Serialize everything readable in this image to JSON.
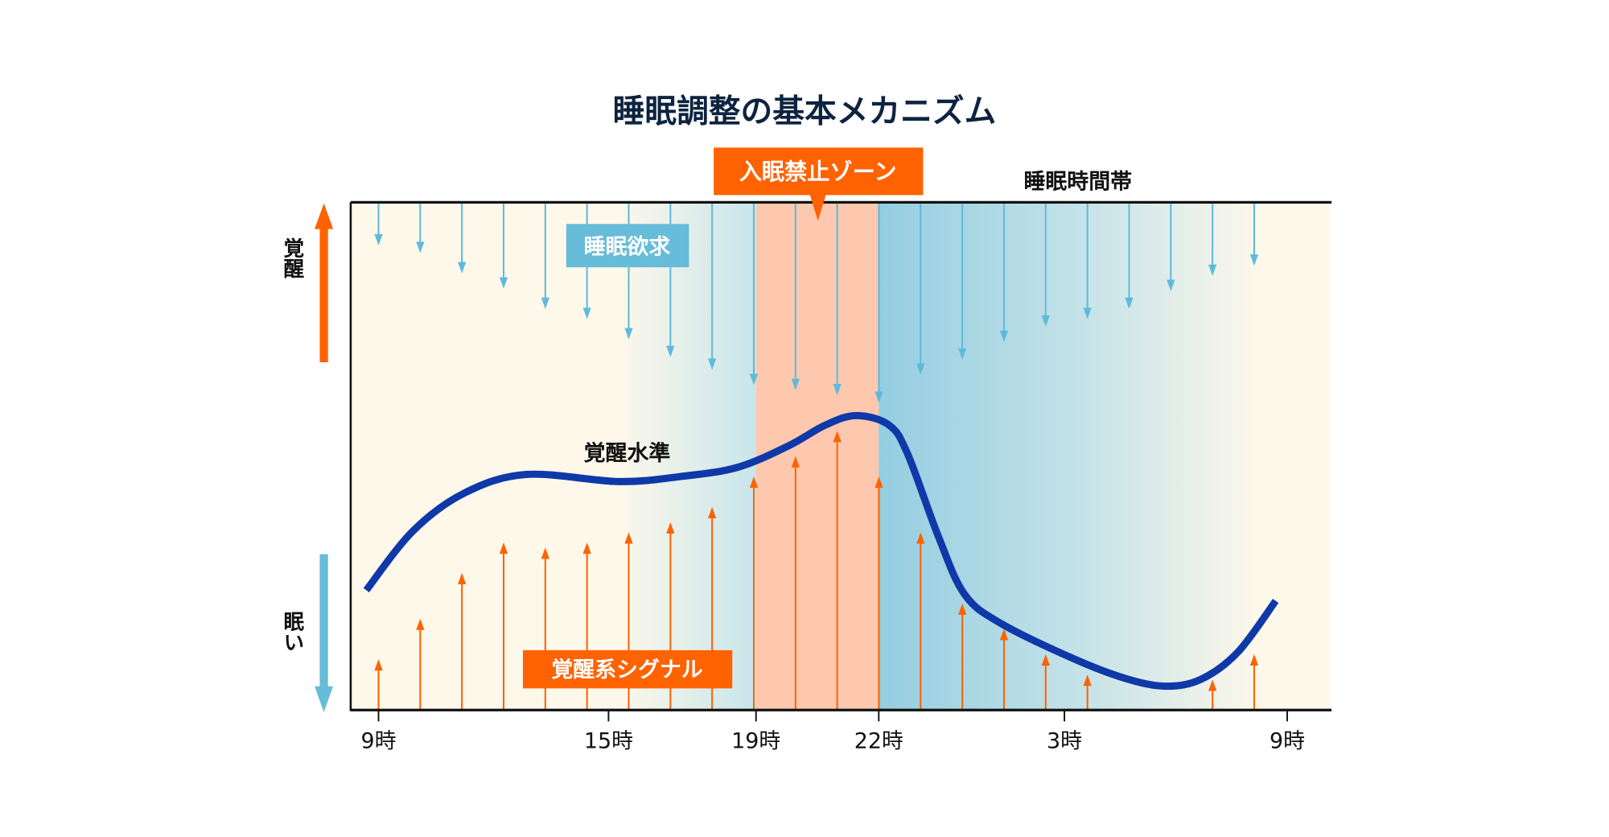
{
  "title": "睡眠調整の基本メカニズム",
  "labels": {
    "no_sleep_zone": "入眠禁止ゾーン",
    "sleep_period": "睡眠時間帯",
    "sleep_pressure": "睡眠欲求",
    "arousal_level": "覚醒水準",
    "arousal_signal": "覚醒系シグナル",
    "axis_up": "覚醒",
    "axis_down": "眠い"
  },
  "colors": {
    "title": "#0d2340",
    "orange": "#ff6200",
    "blue_arrow": "#5fbadc",
    "blue_box": "#67bcd9",
    "curve": "#0f38a8",
    "cream": "#fdf8ea",
    "zone": "#fdc8ae",
    "night": "#94cde1"
  },
  "chart_data": {
    "type": "diagram",
    "x_ticks": [
      {
        "hour": 9,
        "label": "9時"
      },
      {
        "hour": 15,
        "label": "15時"
      },
      {
        "hour": 19,
        "label": "19時"
      },
      {
        "hour": 22,
        "label": "22時"
      },
      {
        "hour": 27,
        "label": "3時"
      },
      {
        "hour": 33,
        "label": "9時"
      }
    ],
    "no_sleep_zone_hours": [
      19,
      22
    ],
    "sleep_pressure_depths": [
      8.5,
      10,
      14,
      17,
      21,
      23,
      27,
      30.5,
      33,
      36,
      37,
      38,
      39.5,
      34,
      31,
      27.5,
      24.5,
      23,
      21,
      17.5,
      14.5,
      12.5
    ],
    "arousal_signal_levels": [
      10,
      18,
      27,
      33,
      32,
      33,
      35,
      37,
      40,
      46,
      50,
      55,
      46,
      35,
      21,
      16,
      11,
      7,
      null,
      null,
      6,
      11
    ],
    "arousal_curve": [
      [
        8.68,
        23.6
      ],
      [
        9.89,
        35.2
      ],
      [
        11.23,
        42.7
      ],
      [
        12.85,
        46.4
      ],
      [
        15.28,
        45.0
      ],
      [
        16.96,
        46.0
      ],
      [
        18.5,
        47.8
      ],
      [
        19.81,
        52.1
      ],
      [
        20.69,
        56.1
      ],
      [
        21.45,
        58.0
      ],
      [
        22.28,
        56.1
      ],
      [
        22.78,
        50.4
      ],
      [
        23.61,
        34.1
      ],
      [
        24.31,
        22.8
      ],
      [
        25.28,
        17.1
      ],
      [
        27.22,
        10.2
      ],
      [
        28.61,
        6.3
      ],
      [
        29.72,
        4.7
      ],
      [
        30.69,
        6.1
      ],
      [
        31.67,
        11.4
      ],
      [
        32.69,
        21.5
      ]
    ],
    "ylim": [
      0,
      100
    ]
  }
}
